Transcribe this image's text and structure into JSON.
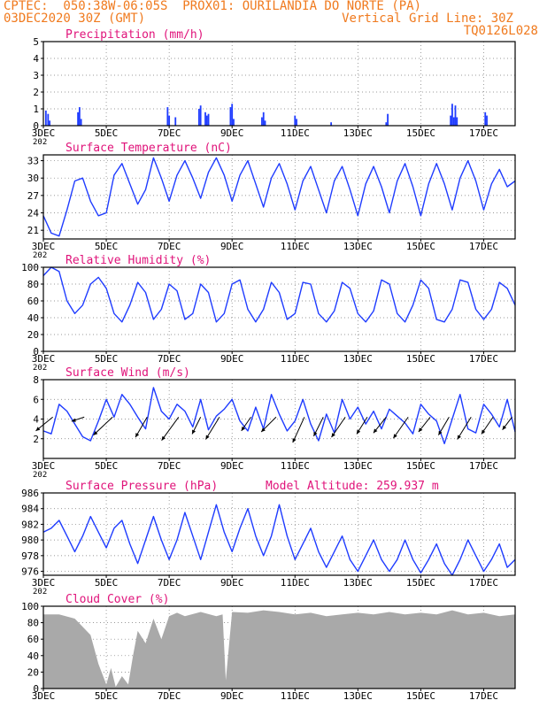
{
  "header": {
    "line1": "CPTEC:  050:38W-06:05S  PROX01: OURILANDIA DO NORTE (PA)",
    "line2_left": "03DEC2020 30Z (GMT)",
    "line2_right": "Vertical Grid Line: 30Z",
    "line3_right": "TQ0126L028"
  },
  "colors": {
    "title": "#e0137a",
    "header": "#f07a1e",
    "line": "#1f3cff",
    "cloud": "#a9a9a9"
  },
  "x_axis": {
    "range": [
      3,
      18
    ],
    "ticks": [
      "3DEC",
      "5DEC",
      "7DEC",
      "9DEC",
      "11DEC",
      "13DEC",
      "15DEC",
      "17DEC"
    ],
    "stub": "202"
  },
  "chart_data": [
    {
      "id": "precip",
      "type": "bar",
      "title": "Precipitation (mm/h)",
      "ylim": [
        0,
        5
      ],
      "yticks": [
        "0",
        "1",
        "2",
        "3",
        "4",
        "5"
      ],
      "grid": true,
      "x": [
        3.08,
        3.15,
        3.2,
        4.1,
        4.15,
        4.2,
        6.95,
        7.0,
        7.2,
        7.95,
        8.0,
        8.15,
        8.2,
        8.25,
        8.95,
        9.0,
        9.05,
        9.95,
        10.0,
        10.05,
        11.0,
        11.05,
        12.15,
        13.9,
        13.95,
        15.95,
        16.0,
        16.05,
        16.1,
        16.15,
        17.05,
        17.1
      ],
      "values": [
        0.9,
        0.7,
        0.3,
        0.8,
        1.1,
        0.4,
        1.1,
        0.6,
        0.5,
        1.0,
        1.2,
        0.8,
        0.6,
        0.7,
        1.1,
        1.3,
        0.4,
        0.5,
        0.8,
        0.3,
        0.6,
        0.4,
        0.2,
        0.2,
        0.7,
        0.6,
        1.3,
        0.5,
        1.2,
        0.5,
        0.8,
        0.6
      ]
    },
    {
      "id": "temp",
      "type": "line",
      "title": "Surface Temperature (nC)",
      "ylim": [
        19.5,
        34
      ],
      "yticks": [
        "21",
        "24",
        "27",
        "30",
        "33"
      ],
      "grid": true,
      "x": [
        3.0,
        3.25,
        3.5,
        3.75,
        4.0,
        4.25,
        4.5,
        4.75,
        5.0,
        5.25,
        5.5,
        5.75,
        6.0,
        6.25,
        6.5,
        6.75,
        7.0,
        7.25,
        7.5,
        7.75,
        8.0,
        8.25,
        8.5,
        8.75,
        9.0,
        9.25,
        9.5,
        9.75,
        10.0,
        10.25,
        10.5,
        10.75,
        11.0,
        11.25,
        11.5,
        11.75,
        12.0,
        12.25,
        12.5,
        12.75,
        13.0,
        13.25,
        13.5,
        13.75,
        14.0,
        14.25,
        14.5,
        14.75,
        15.0,
        15.25,
        15.5,
        15.75,
        16.0,
        16.25,
        16.5,
        16.75,
        17.0,
        17.25,
        17.5,
        17.75,
        18.0
      ],
      "values": [
        23.5,
        20.5,
        20.0,
        24.5,
        29.5,
        30.0,
        26.0,
        23.5,
        24.0,
        30.5,
        32.5,
        29.0,
        25.5,
        28.0,
        33.5,
        30.0,
        26.0,
        30.5,
        33.0,
        30.0,
        26.5,
        31.0,
        33.5,
        30.5,
        26.0,
        30.5,
        33.0,
        29.0,
        25.0,
        30.0,
        32.5,
        29.0,
        24.5,
        29.5,
        32.0,
        28.0,
        24.0,
        29.5,
        32.0,
        28.0,
        23.5,
        29.0,
        32.0,
        28.5,
        24.0,
        29.5,
        32.5,
        28.5,
        23.5,
        29.0,
        32.5,
        29.0,
        24.5,
        30.0,
        33.0,
        29.5,
        24.5,
        29.0,
        31.5,
        28.5,
        29.5
      ]
    },
    {
      "id": "rh",
      "type": "line",
      "title": "Relative Humidity (%)",
      "ylim": [
        0,
        100
      ],
      "yticks": [
        "0",
        "20",
        "40",
        "60",
        "80",
        "100"
      ],
      "grid": true,
      "x": [
        3.0,
        3.25,
        3.5,
        3.75,
        4.0,
        4.25,
        4.5,
        4.75,
        5.0,
        5.25,
        5.5,
        5.75,
        6.0,
        6.25,
        6.5,
        6.75,
        7.0,
        7.25,
        7.5,
        7.75,
        8.0,
        8.25,
        8.5,
        8.75,
        9.0,
        9.25,
        9.5,
        9.75,
        10.0,
        10.25,
        10.5,
        10.75,
        11.0,
        11.25,
        11.5,
        11.75,
        12.0,
        12.25,
        12.5,
        12.75,
        13.0,
        13.25,
        13.5,
        13.75,
        14.0,
        14.25,
        14.5,
        14.75,
        15.0,
        15.25,
        15.5,
        15.75,
        16.0,
        16.25,
        16.5,
        16.75,
        17.0,
        17.25,
        17.5,
        17.75,
        18.0
      ],
      "values": [
        90.0,
        100.0,
        95.0,
        60.0,
        45.0,
        55.0,
        80.0,
        88.0,
        75.0,
        45.0,
        35.0,
        55.0,
        82.0,
        70.0,
        38.0,
        50.0,
        80.0,
        72.0,
        38.0,
        45.0,
        80.0,
        70.0,
        35.0,
        45.0,
        80.0,
        85.0,
        50.0,
        35.0,
        50.0,
        82.0,
        70.0,
        38.0,
        45.0,
        82.0,
        80.0,
        45.0,
        35.0,
        48.0,
        82.0,
        75.0,
        45.0,
        35.0,
        48.0,
        85.0,
        80.0,
        45.0,
        35.0,
        55.0,
        85.0,
        75.0,
        38.0,
        35.0,
        50.0,
        85.0,
        82.0,
        50.0,
        38.0,
        50.0,
        82.0,
        75.0,
        55.0
      ]
    },
    {
      "id": "wind",
      "type": "line",
      "title": "Surface Wind (m/s)",
      "ylim": [
        0,
        8
      ],
      "yticks": [
        "2",
        "4",
        "6",
        "8"
      ],
      "grid": true,
      "x": [
        3.0,
        3.25,
        3.5,
        3.75,
        4.0,
        4.25,
        4.5,
        4.75,
        5.0,
        5.25,
        5.5,
        5.75,
        6.0,
        6.25,
        6.5,
        6.75,
        7.0,
        7.25,
        7.5,
        7.75,
        8.0,
        8.25,
        8.5,
        8.75,
        9.0,
        9.25,
        9.5,
        9.75,
        10.0,
        10.25,
        10.5,
        10.75,
        11.0,
        11.25,
        11.5,
        11.75,
        12.0,
        12.25,
        12.5,
        12.75,
        13.0,
        13.25,
        13.5,
        13.75,
        14.0,
        14.25,
        14.5,
        14.75,
        15.0,
        15.25,
        15.5,
        15.75,
        16.0,
        16.25,
        16.5,
        16.75,
        17.0,
        17.25,
        17.5,
        17.75,
        18.0
      ],
      "values": [
        2.8,
        2.5,
        5.5,
        4.8,
        3.5,
        2.2,
        1.8,
        3.8,
        6.0,
        4.2,
        6.5,
        5.5,
        4.2,
        3.0,
        7.2,
        4.8,
        4.0,
        5.5,
        4.8,
        3.2,
        6.0,
        2.9,
        4.3,
        5.0,
        6.0,
        3.8,
        2.8,
        5.2,
        3.0,
        6.5,
        4.5,
        2.8,
        3.8,
        6.0,
        3.5,
        1.8,
        4.5,
        2.6,
        6.0,
        4.0,
        5.2,
        3.5,
        4.8,
        3.0,
        5.0,
        4.3,
        3.6,
        2.5,
        5.5,
        4.5,
        3.8,
        1.5,
        4.0,
        6.5,
        3.0,
        2.6,
        5.5,
        4.5,
        3.2,
        6.0,
        2.7
      ],
      "barbs": {
        "x": [
          3.3,
          4.3,
          5.2,
          6.3,
          7.3,
          8.0,
          8.6,
          9.6,
          10.4,
          11.3,
          11.9,
          12.6,
          13.3,
          13.9,
          14.6,
          15.3,
          15.9,
          16.6,
          17.3,
          17.9
        ],
        "u": [
          1.6,
          1.2,
          1.8,
          1.1,
          1.6,
          0.8,
          1.3,
          0.9,
          1.4,
          1.1,
          0.9,
          1.3,
          1.0,
          1.2,
          1.4,
          1.1,
          1.0,
          1.3,
          1.1,
          0.9
        ],
        "v": [
          1.3,
          0.4,
          1.7,
          1.9,
          2.2,
          1.6,
          2.1,
          1.3,
          1.4,
          2.4,
          1.8,
          1.9,
          1.6,
          1.5,
          2.0,
          1.4,
          1.7,
          2.1,
          1.6,
          1.2
        ]
      }
    },
    {
      "id": "pres",
      "type": "line",
      "title": "Surface Pressure (hPa)",
      "title2": "Model Altitude: 259.937 m",
      "ylim": [
        975.5,
        986
      ],
      "yticks": [
        "976",
        "978",
        "980",
        "982",
        "984",
        "986"
      ],
      "grid": true,
      "x": [
        3.0,
        3.25,
        3.5,
        3.75,
        4.0,
        4.25,
        4.5,
        4.75,
        5.0,
        5.25,
        5.5,
        5.75,
        6.0,
        6.25,
        6.5,
        6.75,
        7.0,
        7.25,
        7.5,
        7.75,
        8.0,
        8.25,
        8.5,
        8.75,
        9.0,
        9.25,
        9.5,
        9.75,
        10.0,
        10.25,
        10.5,
        10.75,
        11.0,
        11.25,
        11.5,
        11.75,
        12.0,
        12.25,
        12.5,
        12.75,
        13.0,
        13.25,
        13.5,
        13.75,
        14.0,
        14.25,
        14.5,
        14.75,
        15.0,
        15.25,
        15.5,
        15.75,
        16.0,
        16.25,
        16.5,
        16.75,
        17.0,
        17.25,
        17.5,
        17.75,
        18.0
      ],
      "values": [
        981.0,
        981.5,
        982.5,
        980.5,
        978.5,
        980.5,
        983.0,
        981.0,
        979.0,
        981.5,
        982.5,
        979.5,
        977.0,
        980.0,
        983.0,
        980.0,
        977.5,
        980.0,
        983.5,
        980.5,
        977.5,
        981.0,
        984.5,
        981.0,
        978.5,
        981.5,
        984.0,
        980.5,
        978.0,
        980.5,
        984.5,
        980.5,
        977.5,
        979.5,
        981.5,
        978.5,
        976.5,
        978.5,
        980.5,
        977.5,
        976.0,
        978.0,
        980.0,
        977.5,
        976.0,
        977.5,
        980.0,
        977.5,
        975.8,
        977.5,
        979.5,
        977.0,
        975.5,
        977.5,
        980.0,
        978.0,
        976.0,
        977.5,
        979.5,
        976.5,
        977.5
      ]
    },
    {
      "id": "cloud",
      "type": "area",
      "title": "Cloud Cover (%)",
      "ylim": [
        0,
        100
      ],
      "yticks": [
        "0",
        "20",
        "40",
        "60",
        "80",
        "100"
      ],
      "grid": true,
      "x": [
        3.0,
        3.5,
        4.0,
        4.25,
        4.5,
        4.75,
        5.0,
        5.15,
        5.3,
        5.5,
        5.7,
        5.85,
        6.0,
        6.25,
        6.5,
        6.75,
        7.0,
        7.25,
        7.5,
        8.0,
        8.5,
        8.7,
        8.8,
        9.0,
        9.5,
        10.0,
        10.5,
        11.0,
        11.5,
        12.0,
        12.5,
        13.0,
        13.5,
        14.0,
        14.5,
        15.0,
        15.5,
        16.0,
        16.5,
        17.0,
        17.5,
        18.0
      ],
      "values": [
        90,
        90,
        85,
        75,
        65,
        30,
        5,
        25,
        2,
        15,
        5,
        40,
        70,
        55,
        85,
        60,
        88,
        92,
        88,
        93,
        88,
        90,
        10,
        93,
        92,
        95,
        93,
        90,
        92,
        88,
        90,
        92,
        90,
        93,
        90,
        92,
        90,
        95,
        90,
        92,
        88,
        90
      ]
    }
  ]
}
